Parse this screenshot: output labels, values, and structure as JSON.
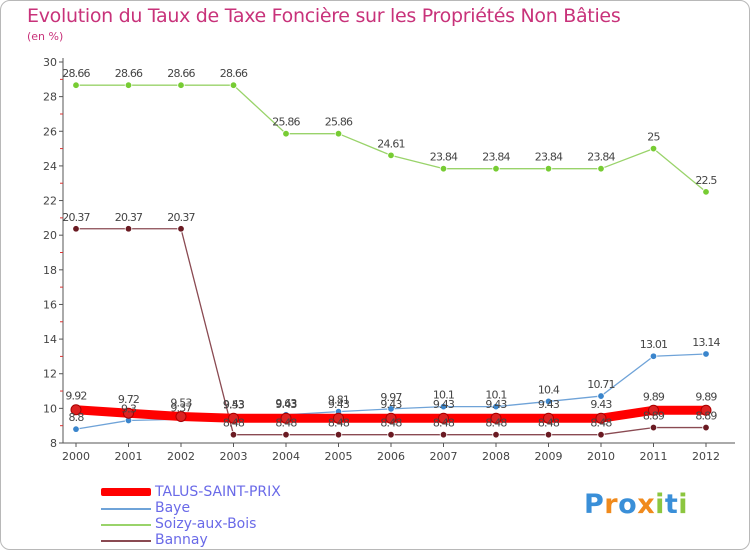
{
  "title": "Evolution du Taux de Taxe Foncière sur les Propriétés Non Bâties",
  "subtitle": "(en %)",
  "logo": {
    "text": "Proxiti",
    "letters": [
      "P",
      "r",
      "o",
      "x",
      "i",
      "t",
      "i"
    ]
  },
  "colors": {
    "title": "#c8327a",
    "axis": "#555555",
    "grid": "#e0e0e0",
    "legend_text": "#6a6ae8"
  },
  "chart_data": {
    "type": "line",
    "title": "Evolution du Taux de Taxe Foncière sur les Propriétés Non Bâties",
    "ylabel": "(en %)",
    "xlabel": "",
    "x": [
      "2000",
      "2001",
      "2002",
      "2003",
      "2004",
      "2005",
      "2006",
      "2007",
      "2008",
      "2009",
      "2010",
      "2011",
      "2012"
    ],
    "ylim": [
      8,
      30
    ],
    "yticks": [
      8,
      10,
      12,
      14,
      16,
      18,
      20,
      22,
      24,
      26,
      28,
      30
    ],
    "grid": false,
    "series": [
      {
        "name": "TALUS-SAINT-PRIX",
        "color": "#ff0000",
        "marker": "#dd2222",
        "values": [
          9.92,
          9.72,
          9.53,
          9.43,
          9.43,
          9.43,
          9.43,
          9.43,
          9.43,
          9.43,
          9.43,
          9.89,
          9.89
        ],
        "labels": [
          "9.92",
          "9.72",
          "9.53",
          "9.43",
          "9.43",
          "9.43",
          "9.43",
          "9.43",
          "9.43",
          "9.43",
          "9.43",
          "9.89",
          "9.89"
        ]
      },
      {
        "name": "Baye",
        "color": "#6fa3d8",
        "marker": "#3a85cc",
        "values": [
          8.8,
          9.3,
          9.37,
          9.53,
          9.63,
          9.81,
          9.97,
          10.1,
          10.1,
          10.4,
          10.71,
          13.01,
          13.14
        ],
        "labels": [
          "8.8",
          "9.3",
          "9.37",
          "9.53",
          "9.63",
          "9.81",
          "9.97",
          "10.1",
          "10.1",
          "10.4",
          "10.71",
          "13.01",
          "13.14"
        ]
      },
      {
        "name": "Soizy-aux-Bois",
        "color": "#99d36a",
        "marker": "#77cc33",
        "values": [
          28.66,
          28.66,
          28.66,
          28.66,
          25.86,
          25.86,
          24.61,
          23.84,
          23.84,
          23.84,
          23.84,
          25,
          22.5
        ],
        "labels": [
          "28.66",
          "28.66",
          "28.66",
          "28.66",
          "25.86",
          "25.86",
          "24.61",
          "23.84",
          "23.84",
          "23.84",
          "23.84",
          "25",
          "22.5"
        ]
      },
      {
        "name": "Bannay",
        "color": "#8a4a52",
        "marker": "#6a1a22",
        "values": [
          20.37,
          20.37,
          20.37,
          8.48,
          8.48,
          8.48,
          8.48,
          8.48,
          8.48,
          8.48,
          8.48,
          8.89,
          8.89
        ],
        "labels": [
          "20.37",
          "20.37",
          "20.37",
          "8.48",
          "8.48",
          "8.48",
          "8.48",
          "8.48",
          "8.48",
          "8.48",
          "8.48",
          "8.89",
          "8.89"
        ]
      }
    ]
  }
}
